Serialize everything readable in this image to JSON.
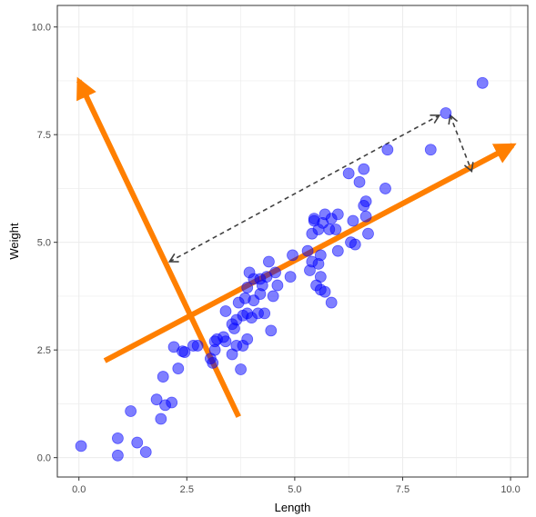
{
  "chart_data": {
    "type": "scatter",
    "title": "",
    "xlabel": "Length",
    "ylabel": "Weight",
    "xlim": [
      -0.5,
      10.4
    ],
    "ylim": [
      -0.45,
      10.5
    ],
    "x_ticks": [
      0.0,
      2.5,
      5.0,
      7.5,
      10.0
    ],
    "x_tick_labels": [
      "0.0",
      "2.5",
      "5.0",
      "7.5",
      "10.0"
    ],
    "y_ticks": [
      0.0,
      2.5,
      5.0,
      7.5,
      10.0
    ],
    "y_tick_labels": [
      "0.0",
      "2.5",
      "5.0",
      "7.5",
      "10.0"
    ],
    "grid": true,
    "panel_border": true,
    "point_color": "#0000ff",
    "point_opacity": 0.5,
    "series": [
      {
        "points": [
          [
            0.05,
            0.27
          ],
          [
            0.9,
            0.05
          ],
          [
            0.9,
            0.45
          ],
          [
            1.2,
            1.08
          ],
          [
            1.35,
            0.35
          ],
          [
            1.55,
            0.13
          ],
          [
            1.8,
            1.35
          ],
          [
            1.9,
            0.9
          ],
          [
            1.95,
            1.88
          ],
          [
            2.0,
            1.22
          ],
          [
            2.15,
            1.28
          ],
          [
            2.2,
            2.57
          ],
          [
            2.3,
            2.07
          ],
          [
            2.4,
            2.47
          ],
          [
            2.45,
            2.45
          ],
          [
            2.65,
            2.6
          ],
          [
            2.75,
            2.6
          ],
          [
            3.05,
            2.3
          ],
          [
            3.1,
            2.2
          ],
          [
            3.15,
            2.5
          ],
          [
            3.15,
            2.7
          ],
          [
            3.2,
            2.75
          ],
          [
            3.35,
            2.8
          ],
          [
            3.4,
            2.7
          ],
          [
            3.4,
            3.4
          ],
          [
            3.55,
            2.4
          ],
          [
            3.55,
            3.1
          ],
          [
            3.6,
            3.0
          ],
          [
            3.65,
            2.6
          ],
          [
            3.65,
            3.2
          ],
          [
            3.7,
            3.6
          ],
          [
            3.75,
            2.05
          ],
          [
            3.8,
            2.6
          ],
          [
            3.8,
            3.3
          ],
          [
            3.85,
            3.7
          ],
          [
            3.9,
            2.75
          ],
          [
            3.9,
            3.35
          ],
          [
            3.9,
            3.95
          ],
          [
            3.95,
            4.3
          ],
          [
            4.0,
            3.25
          ],
          [
            4.05,
            3.65
          ],
          [
            4.05,
            4.15
          ],
          [
            4.15,
            3.35
          ],
          [
            4.2,
            3.8
          ],
          [
            4.2,
            4.15
          ],
          [
            4.25,
            4.0
          ],
          [
            4.3,
            3.35
          ],
          [
            4.35,
            4.2
          ],
          [
            4.4,
            4.55
          ],
          [
            4.45,
            2.95
          ],
          [
            4.5,
            3.75
          ],
          [
            4.55,
            4.3
          ],
          [
            4.6,
            4.0
          ],
          [
            4.9,
            4.2
          ],
          [
            4.95,
            4.7
          ],
          [
            5.3,
            4.8
          ],
          [
            5.35,
            4.35
          ],
          [
            5.4,
            4.55
          ],
          [
            5.4,
            5.2
          ],
          [
            5.45,
            5.5
          ],
          [
            5.45,
            5.55
          ],
          [
            5.5,
            4.0
          ],
          [
            5.55,
            4.5
          ],
          [
            5.55,
            5.3
          ],
          [
            5.6,
            3.9
          ],
          [
            5.6,
            4.2
          ],
          [
            5.6,
            4.7
          ],
          [
            5.65,
            5.45
          ],
          [
            5.7,
            5.65
          ],
          [
            5.7,
            3.85
          ],
          [
            5.8,
            5.3
          ],
          [
            5.85,
            5.55
          ],
          [
            5.85,
            3.6
          ],
          [
            5.95,
            5.3
          ],
          [
            6.0,
            4.8
          ],
          [
            6.0,
            5.65
          ],
          [
            6.25,
            6.6
          ],
          [
            6.3,
            5.0
          ],
          [
            6.35,
            5.5
          ],
          [
            6.4,
            4.95
          ],
          [
            6.5,
            6.4
          ],
          [
            6.6,
            5.85
          ],
          [
            6.6,
            6.7
          ],
          [
            6.65,
            5.6
          ],
          [
            6.65,
            5.95
          ],
          [
            6.7,
            5.2
          ],
          [
            7.1,
            6.25
          ],
          [
            7.15,
            7.15
          ],
          [
            8.15,
            7.15
          ],
          [
            8.5,
            8.0
          ],
          [
            9.35,
            8.7
          ]
        ]
      }
    ],
    "annotations": [
      {
        "type": "arrow",
        "color": "#ff7f00",
        "from": [
          0.6,
          2.25
        ],
        "to": [
          10.05,
          7.25
        ],
        "style": "solid"
      },
      {
        "type": "arrow",
        "color": "#ff7f00",
        "from": [
          3.7,
          0.95
        ],
        "to": [
          0.0,
          8.75
        ],
        "style": "solid"
      },
      {
        "type": "double-arrow",
        "color": "#404040",
        "from": [
          2.1,
          4.55
        ],
        "to": [
          8.35,
          7.95
        ],
        "style": "dashed"
      },
      {
        "type": "double-arrow",
        "color": "#404040",
        "from": [
          8.6,
          7.95
        ],
        "to": [
          9.1,
          6.65
        ],
        "style": "dashed"
      }
    ]
  }
}
